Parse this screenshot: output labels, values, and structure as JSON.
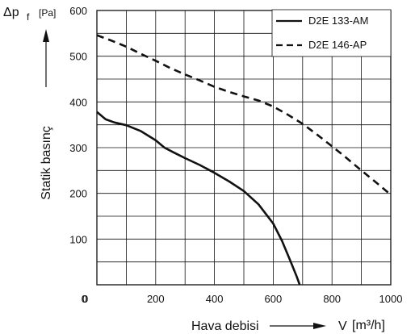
{
  "chart_data": {
    "type": "line",
    "ylabel": "Statik basınç",
    "ylabel_symbol": "Δp",
    "ylabel_subscript": "f",
    "ylabel_unit": "[Pa]",
    "xlabel": "Hava debisi",
    "xlabel_symbol": "V",
    "xlabel_unit": "[m³/h]",
    "xlim": [
      0,
      1000
    ],
    "ylim": [
      0,
      600
    ],
    "x_ticks": [
      0,
      200,
      400,
      600,
      800,
      1000
    ],
    "y_ticks": [
      0,
      100,
      200,
      300,
      400,
      500,
      600
    ],
    "grid": true,
    "legend_position": "top-right",
    "series": [
      {
        "name": "D2E 133-AM",
        "style": "solid",
        "x": [
          0,
          30,
          60,
          100,
          150,
          200,
          230,
          260,
          300,
          350,
          400,
          450,
          500,
          550,
          600,
          630,
          660,
          680,
          690
        ],
        "y": [
          378,
          362,
          355,
          349,
          336,
          316,
          300,
          290,
          277,
          262,
          245,
          226,
          205,
          176,
          134,
          96,
          50,
          18,
          0
        ]
      },
      {
        "name": "D2E 146-AP",
        "style": "dashed",
        "x": [
          0,
          50,
          100,
          150,
          200,
          250,
          300,
          350,
          400,
          450,
          500,
          550,
          600,
          650,
          700,
          750,
          800,
          850,
          900,
          950,
          1000
        ],
        "y": [
          546,
          534,
          521,
          505,
          490,
          474,
          460,
          447,
          433,
          422,
          412,
          403,
          390,
          372,
          352,
          328,
          303,
          277,
          250,
          224,
          197
        ]
      }
    ]
  }
}
